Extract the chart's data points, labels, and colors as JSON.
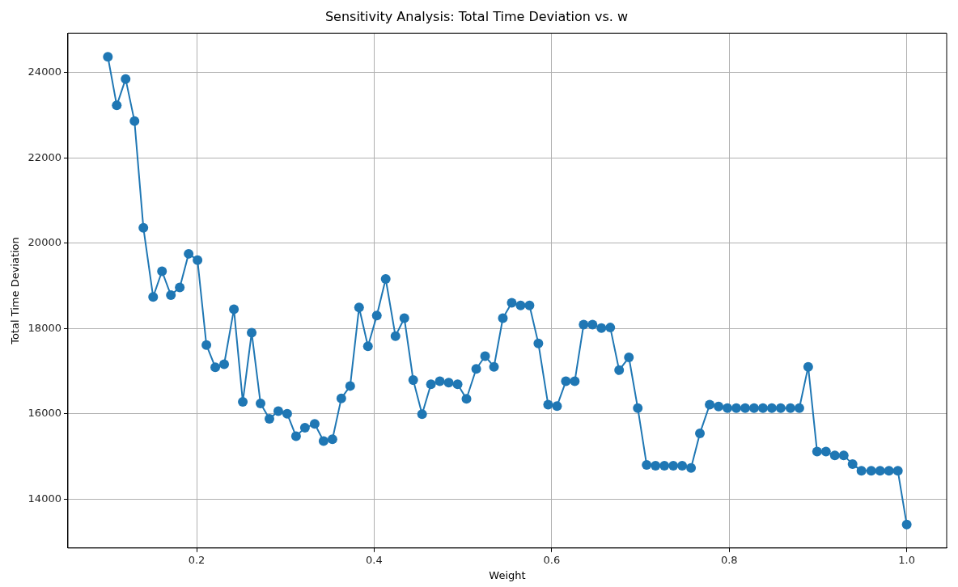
{
  "chart_data": {
    "type": "line",
    "title": "Sensitivity Analysis: Total Time Deviation vs. w",
    "xlabel": "Weight",
    "ylabel": "Total Time Deviation",
    "x": [
      0.1,
      0.11,
      0.12,
      0.13,
      0.14,
      0.151,
      0.161,
      0.171,
      0.181,
      0.191,
      0.201,
      0.211,
      0.221,
      0.231,
      0.242,
      0.252,
      0.262,
      0.272,
      0.282,
      0.292,
      0.302,
      0.312,
      0.322,
      0.333,
      0.343,
      0.353,
      0.363,
      0.373,
      0.383,
      0.393,
      0.403,
      0.413,
      0.424,
      0.434,
      0.444,
      0.454,
      0.464,
      0.474,
      0.484,
      0.494,
      0.504,
      0.515,
      0.525,
      0.535,
      0.545,
      0.555,
      0.565,
      0.575,
      0.585,
      0.596,
      0.606,
      0.616,
      0.626,
      0.636,
      0.646,
      0.656,
      0.666,
      0.676,
      0.687,
      0.697,
      0.707,
      0.717,
      0.727,
      0.737,
      0.747,
      0.757,
      0.767,
      0.778,
      0.788,
      0.798,
      0.808,
      0.818,
      0.828,
      0.838,
      0.848,
      0.858,
      0.869,
      0.879,
      0.889,
      0.899,
      0.909,
      0.919,
      0.929,
      0.939,
      0.949,
      0.96,
      0.97,
      0.98,
      0.99,
      1.0
    ],
    "series": [
      {
        "color": "#1f77b4",
        "values": [
          24370,
          23230,
          23850,
          22860,
          20360,
          18740,
          19340,
          18780,
          18960,
          19750,
          19600,
          17610,
          17090,
          17160,
          18450,
          16280,
          17900,
          16240,
          15880,
          16060,
          16000,
          15470,
          15670,
          15760,
          15360,
          15400,
          16360,
          16650,
          18490,
          17580,
          18300,
          19160,
          17820,
          18240,
          16790,
          15990,
          16690,
          16760,
          16730,
          16690,
          16350,
          17050,
          17350,
          17100,
          18240,
          18600,
          18540,
          18540,
          17650,
          16210,
          16180,
          16760,
          16760,
          18090,
          18090,
          18010,
          18020,
          17020,
          17320,
          16130,
          14800,
          14780,
          14780,
          14780,
          14780,
          14730,
          15540,
          16210,
          16170,
          16130,
          16130,
          16130,
          16130,
          16130,
          16130,
          16130,
          16130,
          16130,
          17100,
          15110,
          15110,
          15020,
          15020,
          14820,
          14660,
          14660,
          14660,
          14660,
          14660,
          13400
        ]
      }
    ],
    "xlim": [
      0.055,
      1.045
    ],
    "ylim": [
      12850,
      24920
    ],
    "xticks": [
      0.2,
      0.4,
      0.6,
      0.8,
      {
        "value": 1,
        "label": "1.0"
      }
    ],
    "yticks": [
      14000,
      16000,
      18000,
      20000,
      22000,
      24000
    ],
    "grid": true,
    "marker": "circle",
    "line_style": "solid"
  }
}
